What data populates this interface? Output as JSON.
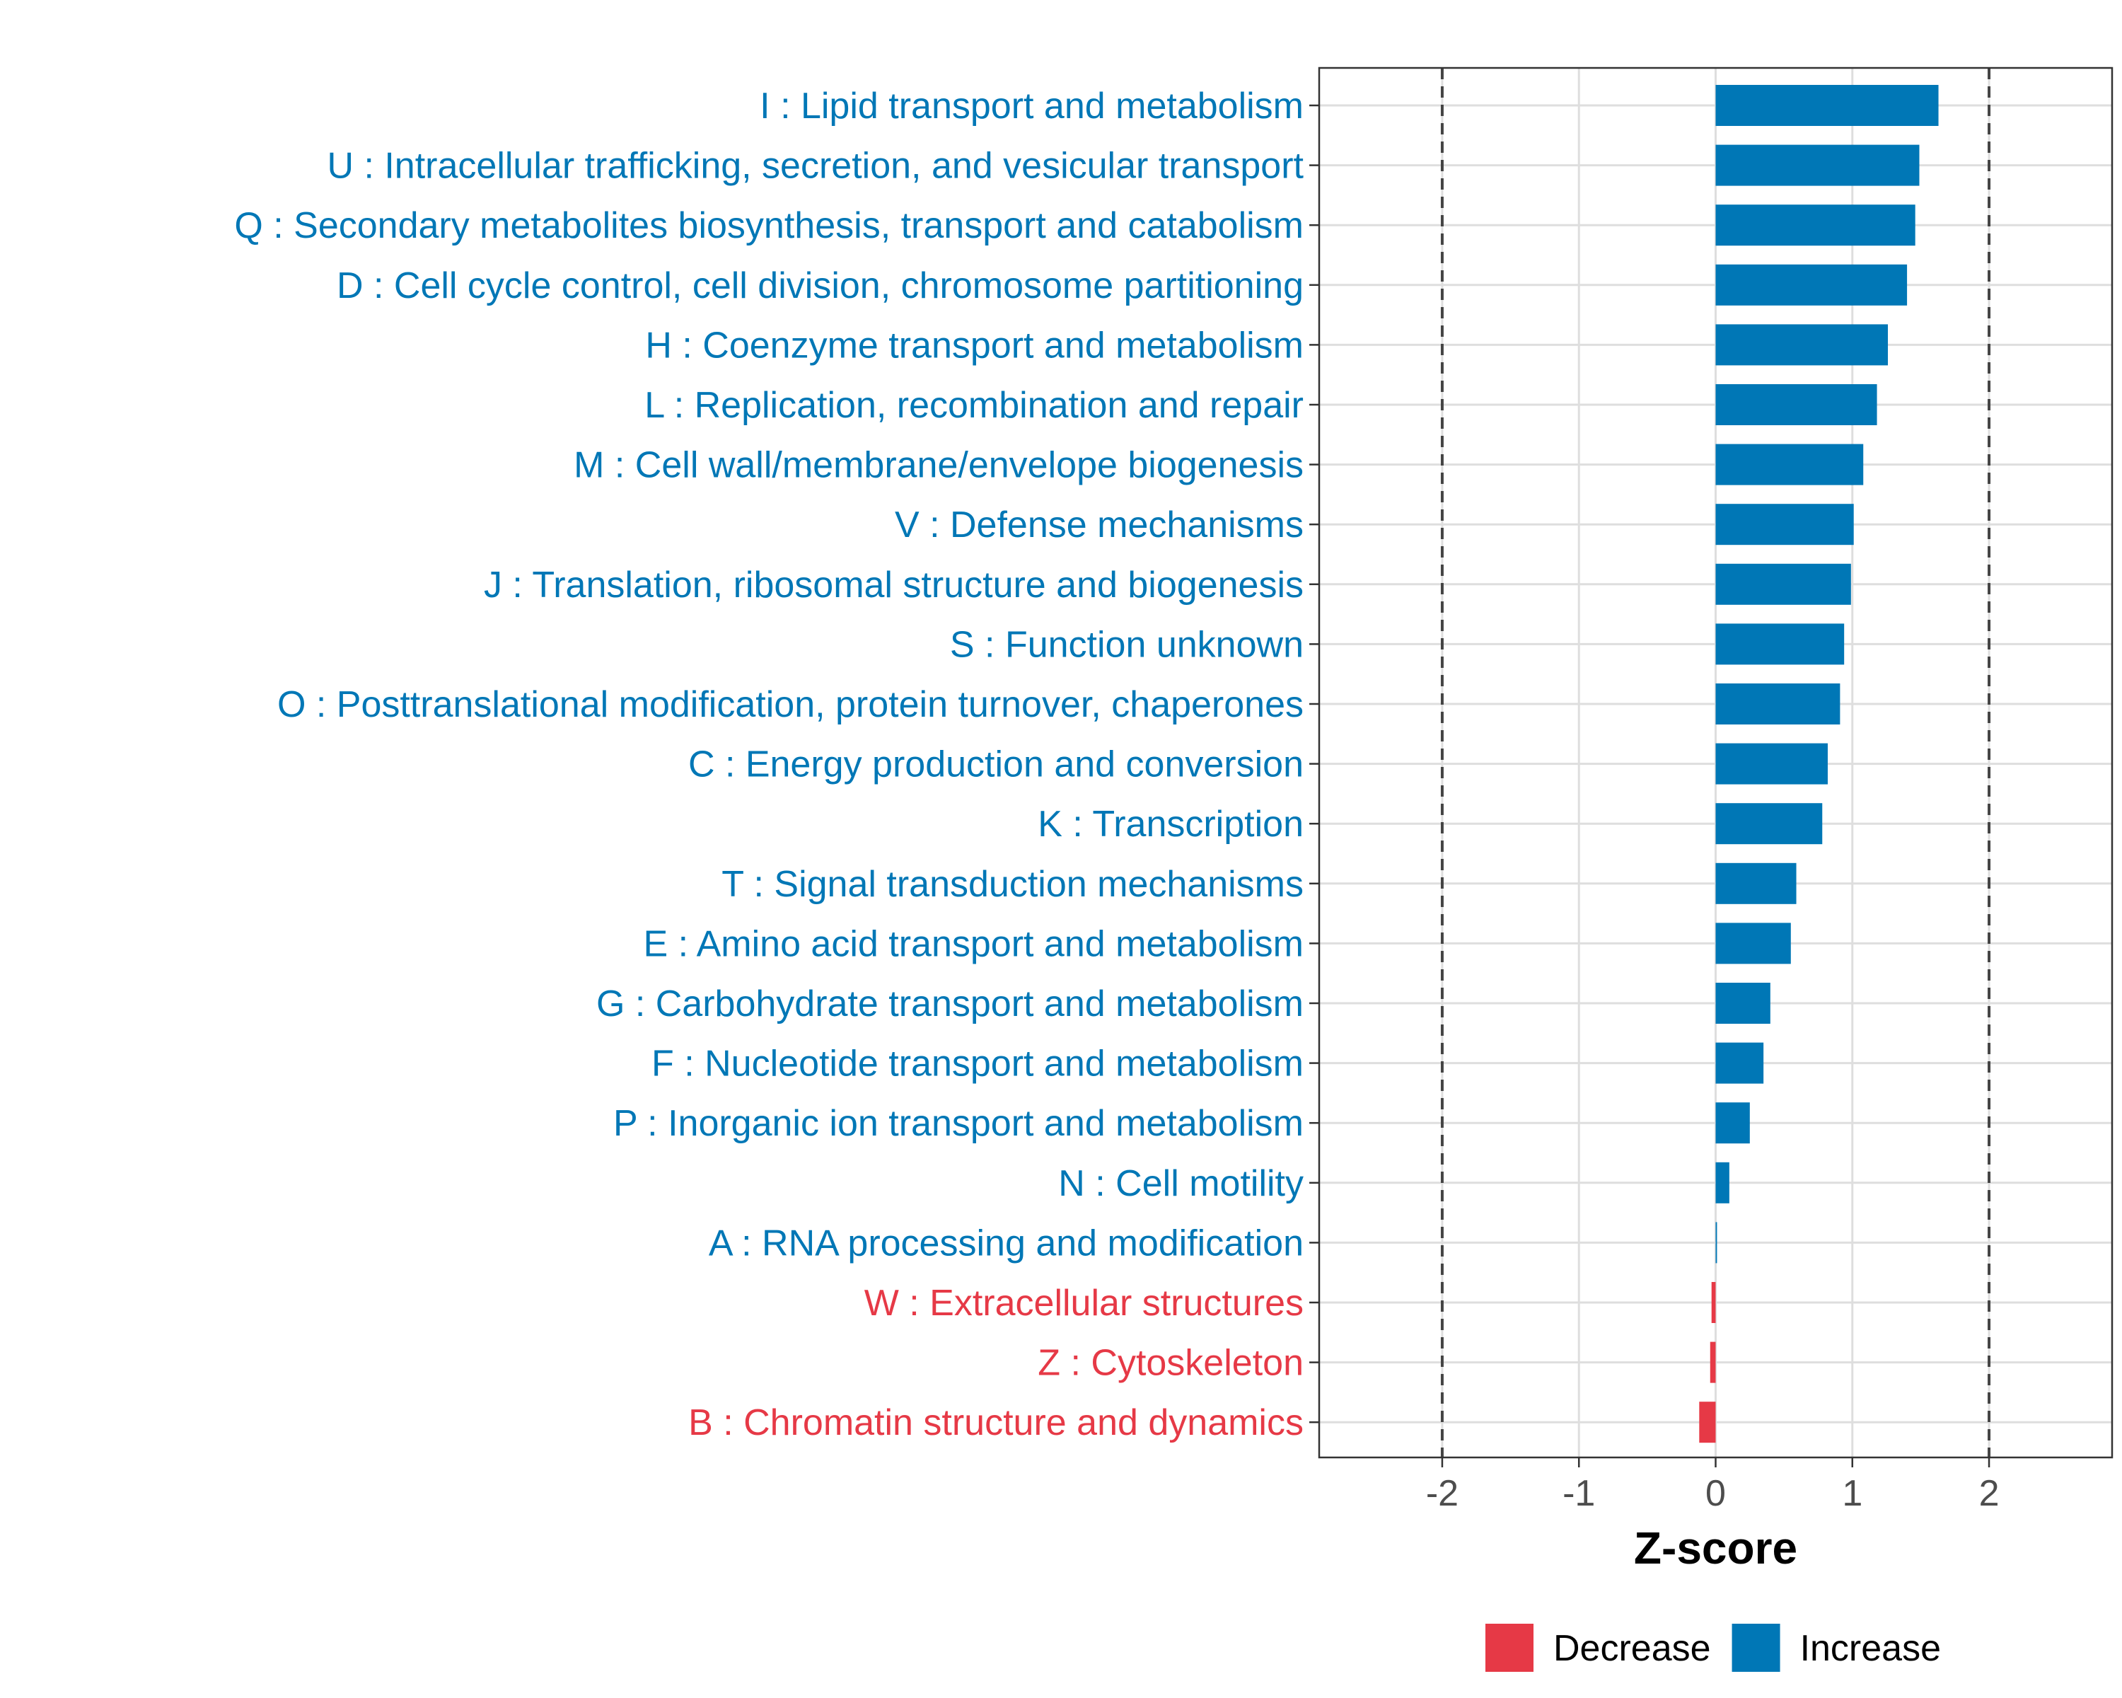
{
  "chart_data": {
    "type": "bar",
    "orientation": "horizontal",
    "title": "",
    "xlabel": "Z-score",
    "ylabel": "",
    "xlim": [
      -2.9,
      2.9
    ],
    "x_ticks": [
      -2,
      -1,
      0,
      1,
      2
    ],
    "x_tick_labels": [
      "-2",
      "-1",
      "0",
      "1",
      "2"
    ],
    "reference_lines": [
      -2,
      2
    ],
    "grid": true,
    "legend_position": "bottom",
    "colors": {
      "Decrease": "#e63946",
      "Increase": "#0077b6"
    },
    "categories": [
      "I : Lipid transport and metabolism",
      "U : Intracellular trafficking, secretion, and vesicular transport",
      "Q : Secondary metabolites biosynthesis, transport and catabolism",
      "D : Cell cycle control, cell division, chromosome partitioning",
      "H : Coenzyme transport and metabolism",
      "L : Replication, recombination and repair",
      "M : Cell wall/membrane/envelope biogenesis",
      "V : Defense mechanisms",
      "J : Translation, ribosomal structure and biogenesis",
      "S : Function unknown",
      "O : Posttranslational modification, protein turnover, chaperones",
      "C : Energy production and conversion",
      "K : Transcription",
      "T : Signal transduction mechanisms",
      "E : Amino acid transport and metabolism",
      "G : Carbohydrate transport and metabolism",
      "F : Nucleotide transport and metabolism",
      "P : Inorganic ion transport and metabolism",
      "N : Cell motility",
      "A : RNA processing and modification",
      "W : Extracellular structures",
      "Z : Cytoskeleton",
      "B : Chromatin structure and dynamics"
    ],
    "values": [
      1.63,
      1.49,
      1.46,
      1.4,
      1.26,
      1.18,
      1.08,
      1.01,
      0.99,
      0.94,
      0.91,
      0.82,
      0.78,
      0.59,
      0.55,
      0.4,
      0.35,
      0.25,
      0.1,
      0.01,
      -0.03,
      -0.04,
      -0.12
    ],
    "direction": [
      "Increase",
      "Increase",
      "Increase",
      "Increase",
      "Increase",
      "Increase",
      "Increase",
      "Increase",
      "Increase",
      "Increase",
      "Increase",
      "Increase",
      "Increase",
      "Increase",
      "Increase",
      "Increase",
      "Increase",
      "Increase",
      "Increase",
      "Increase",
      "Decrease",
      "Decrease",
      "Decrease"
    ],
    "legend": [
      {
        "name": "Decrease",
        "color": "#e63946"
      },
      {
        "name": "Increase",
        "color": "#0077b6"
      }
    ]
  }
}
